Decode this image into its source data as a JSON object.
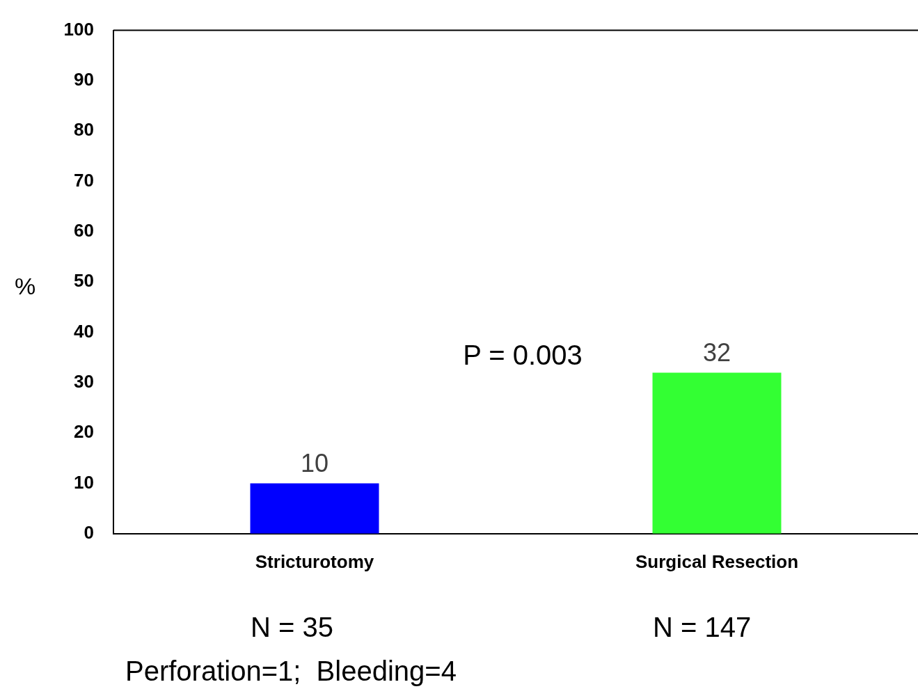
{
  "chart_data": {
    "type": "bar",
    "ylabel": "%",
    "categories": [
      "Stricturotomy",
      "Surgical Resection"
    ],
    "values": [
      10,
      32
    ],
    "colors": [
      "#0000ff",
      "#33ff33"
    ],
    "ylim": [
      0,
      100
    ],
    "yticks": [
      0,
      10,
      20,
      30,
      40,
      50,
      60,
      70,
      80,
      90,
      100
    ],
    "grid": false,
    "legend": false,
    "data_labels": true,
    "annotations": [
      "P = 0.003",
      "N = 35",
      "N = 147",
      "Perforation=1;  Bleeding=4"
    ]
  }
}
